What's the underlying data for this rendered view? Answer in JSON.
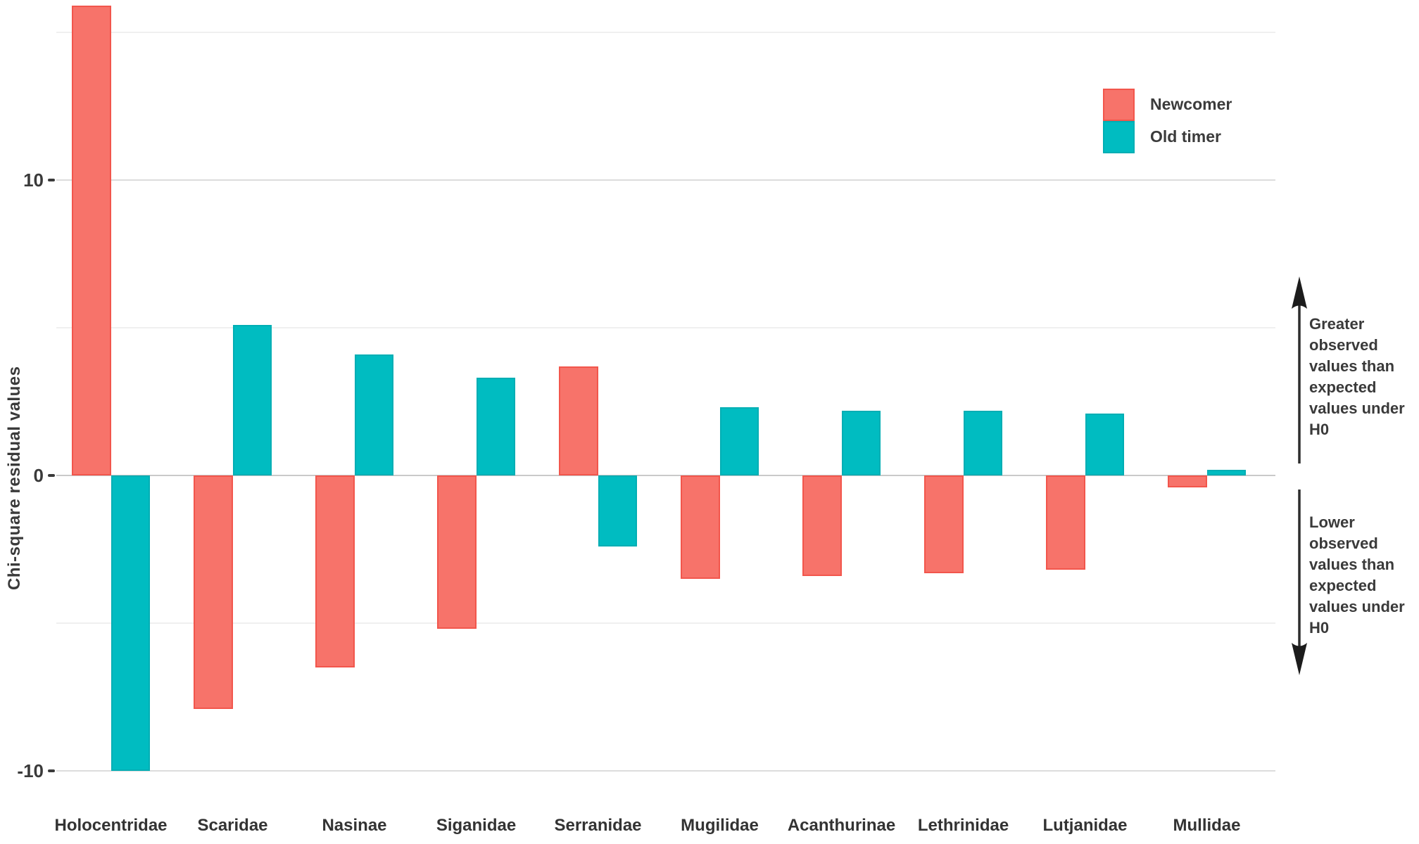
{
  "chart": {
    "annotations": {
      "greater": "Greater\nobserved\nvalues than\nexpected\nvalues under\nH0",
      "lower": "Lower\nobserved\nvalues than\nexpected\nvalues under\nH0"
    }
  },
  "chart_data": {
    "type": "bar",
    "title": "",
    "xlabel": "",
    "ylabel": "Chi-square residual values",
    "categories": [
      "Holocentridae",
      "Scaridae",
      "Nasinae",
      "Siganidae",
      "Serranidae",
      "Mugilidae",
      "Acanthurinae",
      "Lethrinidae",
      "Lutjanidae",
      "Mullidae"
    ],
    "series": [
      {
        "name": "Newcomer",
        "color": "#F7736A",
        "border_color": "#F2564C",
        "values": [
          15.9,
          -7.9,
          -6.5,
          -5.2,
          3.7,
          -3.5,
          -3.4,
          -3.3,
          -3.2,
          -0.4
        ]
      },
      {
        "name": "Old timer",
        "color": "#00BCC1",
        "border_color": "#00AEB4",
        "values": [
          -10.0,
          5.1,
          4.1,
          3.3,
          -2.4,
          2.3,
          2.2,
          2.2,
          2.1,
          0.2
        ]
      }
    ],
    "ylim": [
      -11.5,
      16.2
    ],
    "yticks": [
      {
        "value": 10,
        "label": "10"
      },
      {
        "value": 0,
        "label": "0"
      },
      {
        "value": -10,
        "label": "-10"
      }
    ],
    "minor_gridlines": [
      15,
      5,
      -5
    ],
    "grid": "horizontal major+minor, no vertical",
    "legend_position": "top-right"
  }
}
